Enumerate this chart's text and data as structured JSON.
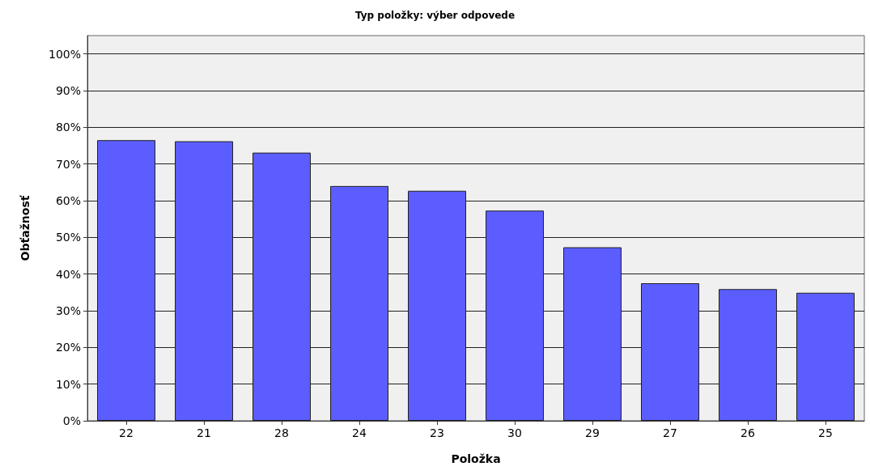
{
  "chart_data": {
    "type": "bar",
    "title": "Typ položky: výber odpovede",
    "xlabel": "Položka",
    "ylabel": "Obťažnosť",
    "categories": [
      "22",
      "21",
      "28",
      "24",
      "23",
      "30",
      "29",
      "27",
      "26",
      "25"
    ],
    "values": [
      76.5,
      76.2,
      73.1,
      64.0,
      62.7,
      57.3,
      47.3,
      37.5,
      35.9,
      34.9
    ],
    "color": "#5b5dff",
    "ylim": [
      0,
      105
    ],
    "yticks": [
      {
        "value": 0,
        "label": "0%"
      },
      {
        "value": 10,
        "label": "10%"
      },
      {
        "value": 20,
        "label": "20%"
      },
      {
        "value": 30,
        "label": "30%"
      },
      {
        "value": 40,
        "label": "40%"
      },
      {
        "value": 50,
        "label": "50%"
      },
      {
        "value": 60,
        "label": "60%"
      },
      {
        "value": 70,
        "label": "70%"
      },
      {
        "value": 80,
        "label": "80%"
      },
      {
        "value": 90,
        "label": "90%"
      },
      {
        "value": 100,
        "label": "100%"
      }
    ],
    "grid": "y"
  }
}
